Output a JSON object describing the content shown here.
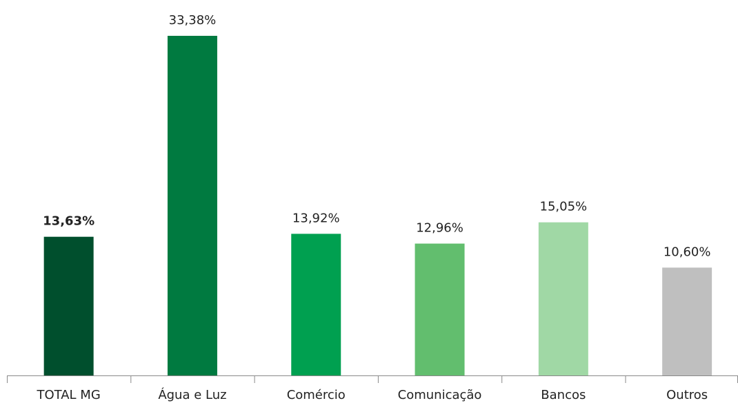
{
  "chart_data": {
    "type": "bar",
    "categories": [
      "TOTAL MG",
      "Água e Luz",
      "Comércio",
      "Comunicação",
      "Bancos",
      "Outros"
    ],
    "values": [
      13.63,
      33.38,
      13.92,
      12.96,
      15.05,
      10.6
    ],
    "value_labels": [
      "13,63%",
      "33,38%",
      "13,92%",
      "12,96%",
      "15,05%",
      "10,60%"
    ],
    "colors": [
      "#004f2d",
      "#007a40",
      "#00a050",
      "#62be6e",
      "#a0d8a5",
      "#bfbfbf"
    ]
  }
}
